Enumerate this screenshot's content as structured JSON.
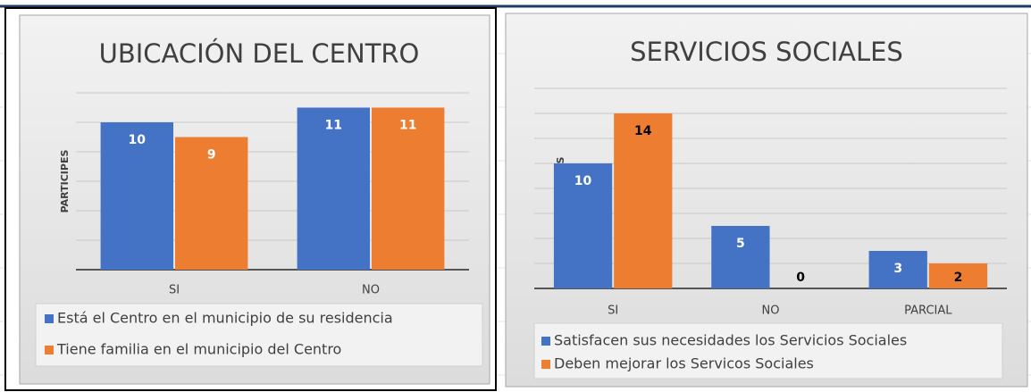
{
  "chart_data": [
    {
      "type": "bar",
      "title": "UBICACIÓN DEL CENTRO",
      "y_label": "PARTICIPES",
      "categories": [
        "SI",
        "NO"
      ],
      "series": [
        {
          "name": "Está el Centro en el municipio de su residencia",
          "color": "#4472c4",
          "label_color": "#ffffff",
          "values": [
            10,
            11
          ]
        },
        {
          "name": "Tiene familia en el municipio del Centro",
          "color": "#ed7d31",
          "label_color": "#ffffff",
          "values": [
            9,
            11
          ]
        }
      ],
      "ylim": [
        0,
        12
      ],
      "yticks": [
        0,
        2,
        4,
        6,
        8,
        10,
        12
      ],
      "grid": true
    },
    {
      "type": "bar",
      "title": "SERVICIOS SOCIALES",
      "y_label": "PARTICIPES",
      "categories": [
        "SI",
        "NO",
        "PARCIAL"
      ],
      "series": [
        {
          "name": "Satisfacen sus necesidades los Servicios Sociales",
          "color": "#4472c4",
          "label_color": "#ffffff",
          "values": [
            10,
            5,
            3
          ]
        },
        {
          "name": "Deben mejorar los Servicos Sociales",
          "color": "#ed7d31",
          "label_color": "#000000",
          "values": [
            14,
            0,
            2
          ]
        }
      ],
      "ylim": [
        0,
        16
      ],
      "yticks": [
        0,
        2,
        4,
        6,
        8,
        10,
        12,
        14,
        16
      ],
      "grid": true
    }
  ]
}
